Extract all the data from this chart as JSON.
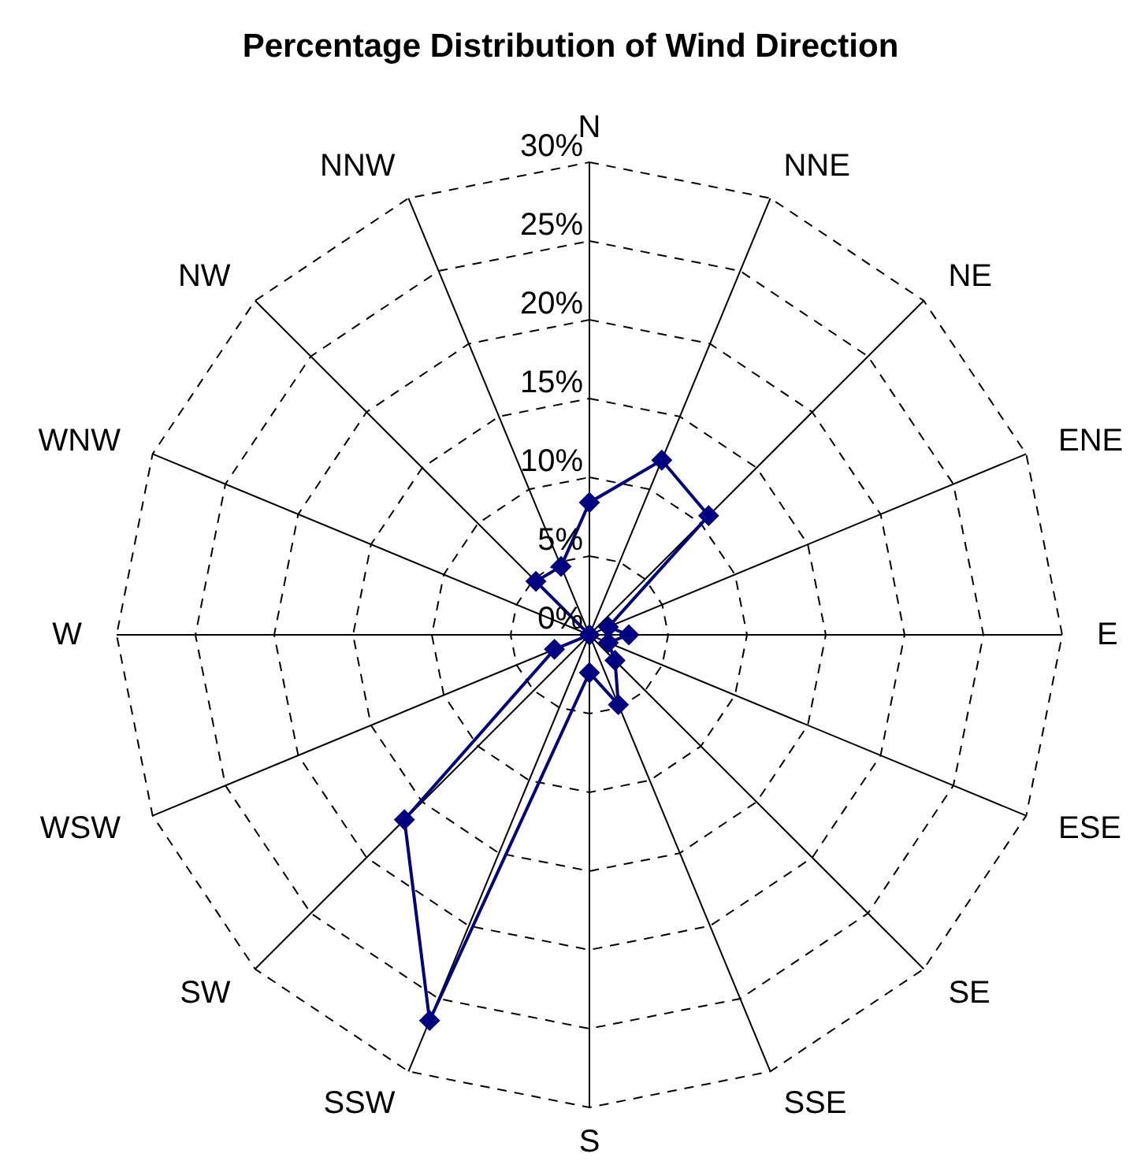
{
  "chart_data": {
    "type": "radar",
    "title": "Percentage Distribution of Wind Direction",
    "categories": [
      "N",
      "NNE",
      "NE",
      "ENE",
      "E",
      "ESE",
      "SE",
      "SSE",
      "S",
      "SSW",
      "SW",
      "WSW",
      "W",
      "WNW",
      "NW",
      "NNW"
    ],
    "series": [
      {
        "color": "#000080",
        "values": [
          8.4,
          12.0,
          10.7,
          1.3,
          2.5,
          1.3,
          2.3,
          4.8,
          2.4,
          26.5,
          16.6,
          2.4,
          0,
          0,
          4.8,
          4.7
        ]
      }
    ],
    "ylim": [
      0,
      30
    ],
    "yticks": [
      {
        "value": 0,
        "label": "0%"
      },
      {
        "value": 5,
        "label": "5%"
      },
      {
        "value": 10,
        "label": "10%"
      },
      {
        "value": 15,
        "label": "15%"
      },
      {
        "value": 20,
        "label": "20%"
      },
      {
        "value": 25,
        "label": "25%"
      },
      {
        "value": 30,
        "label": "30%"
      }
    ],
    "grid": true,
    "marker": "diamond"
  }
}
